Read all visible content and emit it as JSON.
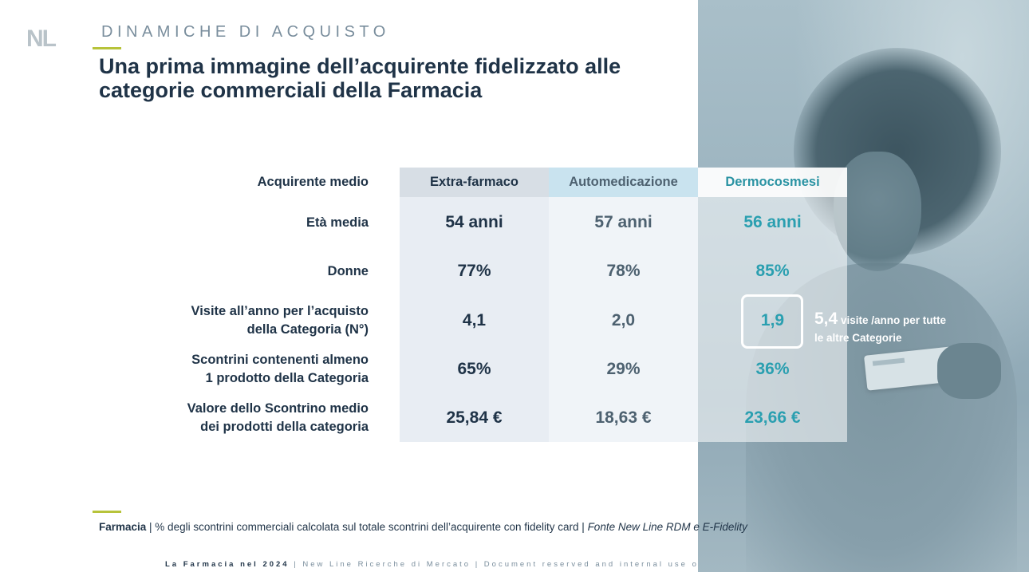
{
  "logo": {
    "text_n": "N",
    "text_l": "L"
  },
  "header": {
    "kicker": "DINAMICHE DI ACQUISTO",
    "title": "Una prima immagine dell’acquirente fidelizzato alle categorie commerciali della Farmacia"
  },
  "table": {
    "row_header": "Acquirente medio",
    "columns": [
      "Extra-farmaco",
      "Automedicazione",
      "Dermocosmesi"
    ],
    "rows": [
      {
        "label_1": "Età media",
        "label_2": "",
        "values": [
          "54 anni",
          "57 anni",
          "56 anni"
        ]
      },
      {
        "label_1": "Donne",
        "label_2": "",
        "values": [
          "77%",
          "78%",
          "85%"
        ]
      },
      {
        "label_1": "Visite all’anno per l’acquisto",
        "label_2": "della Categoria (N°)",
        "values": [
          "4,1",
          "2,0",
          "1,9"
        ]
      },
      {
        "label_1": "Scontrini contenenti almeno",
        "label_2": "1 prodotto della Categoria",
        "values": [
          "65%",
          "29%",
          "36%"
        ]
      },
      {
        "label_1": "Valore dello Scontrino medio",
        "label_2": "dei prodotti della categoria",
        "values": [
          "25,84 €",
          "18,63 €",
          "23,66 €"
        ]
      }
    ]
  },
  "callout": {
    "number": "5,4",
    "text_1": " visite /anno per tutte",
    "text_2": "le altre Categorie"
  },
  "footnote": {
    "bold": "Farmacia",
    "text": " | % degli scontrini commerciali calcolata sul totale scontrini dell’acquirente con fidelity card | ",
    "italic": "Fonte New Line RDM e E-Fidelity"
  },
  "bottom_bar": {
    "bold": "La Farmacia nel 2024",
    "text": " | New Line Ricerche di Mercato | Document reserved and internal use only"
  },
  "colors": {
    "accent": "#b7c33a",
    "teal": "#2a9fb0",
    "navy": "#1f3347"
  }
}
